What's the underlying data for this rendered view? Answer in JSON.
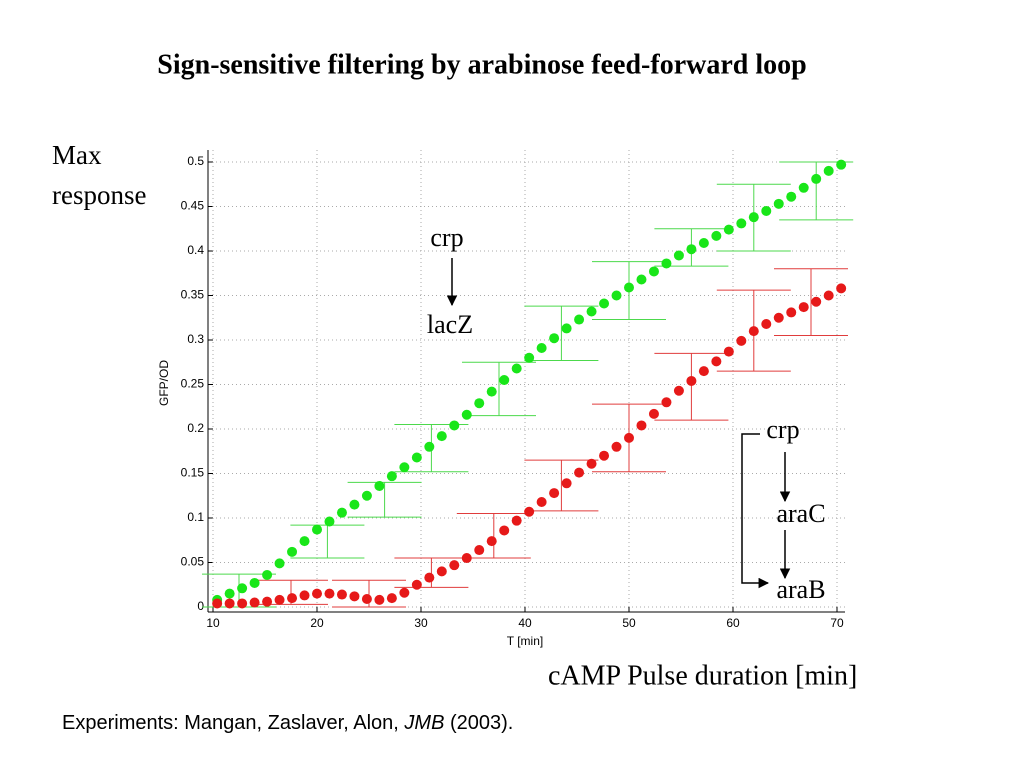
{
  "chart_data": {
    "type": "scatter",
    "title": "Sign-sensitive filtering by arabinose feed-forward loop",
    "xlabel": "T [min]",
    "ylabel": "GFP/OD",
    "x_caption": "cAMP Pulse duration [min]",
    "y_caption": [
      "Max",
      "response"
    ],
    "xlim": [
      10,
      70
    ],
    "xticks": [
      10,
      20,
      30,
      40,
      50,
      60,
      70
    ],
    "ylim": [
      0,
      0.5
    ],
    "yticks": [
      0,
      0.05,
      0.1,
      0.15,
      0.2,
      0.25,
      0.3,
      0.35,
      0.4,
      0.45,
      0.5
    ],
    "grid": true,
    "x": [
      10.4,
      11.6,
      12.8,
      14.0,
      15.2,
      16.4,
      17.6,
      18.8,
      20.0,
      21.2,
      22.4,
      23.6,
      24.8,
      26.0,
      27.2,
      28.4,
      29.6,
      30.8,
      32.0,
      33.2,
      34.4,
      35.6,
      36.8,
      38.0,
      39.2,
      40.4,
      41.6,
      42.8,
      44.0,
      45.2,
      46.4,
      47.6,
      48.8,
      50.0,
      51.2,
      52.4,
      53.6,
      54.8,
      56.0,
      57.2,
      58.4,
      59.6,
      60.8,
      62.0,
      63.2,
      64.4,
      65.6,
      66.8,
      68.0,
      69.2,
      70.4
    ],
    "series": [
      {
        "color": "#19e619",
        "bar_color": "#4cd94c",
        "values": [
          0.008,
          0.015,
          0.021,
          0.027,
          0.036,
          0.049,
          0.062,
          0.074,
          0.087,
          0.096,
          0.106,
          0.115,
          0.125,
          0.136,
          0.147,
          0.157,
          0.168,
          0.18,
          0.192,
          0.204,
          0.216,
          0.229,
          0.242,
          0.255,
          0.268,
          0.28,
          0.291,
          0.302,
          0.313,
          0.323,
          0.332,
          0.341,
          0.35,
          0.359,
          0.368,
          0.377,
          0.386,
          0.395,
          0.402,
          0.409,
          0.417,
          0.424,
          0.431,
          0.438,
          0.445,
          0.453,
          0.461,
          0.471,
          0.481,
          0.49,
          0.497
        ],
        "errorbars": {
          "x": [
            12.5,
            21,
            26.5,
            31,
            37.5,
            43.5,
            50,
            56,
            62,
            68
          ],
          "low": [
            0.0,
            0.055,
            0.101,
            0.152,
            0.215,
            0.277,
            0.323,
            0.383,
            0.4,
            0.435
          ],
          "high": [
            0.037,
            0.092,
            0.14,
            0.205,
            0.275,
            0.338,
            0.388,
            0.425,
            0.475,
            0.5
          ]
        }
      },
      {
        "color": "#e61919",
        "bar_color": "#e03c3c",
        "values": [
          0.004,
          0.004,
          0.004,
          0.005,
          0.006,
          0.008,
          0.01,
          0.013,
          0.015,
          0.015,
          0.014,
          0.012,
          0.009,
          0.008,
          0.01,
          0.016,
          0.025,
          0.033,
          0.04,
          0.047,
          0.055,
          0.064,
          0.074,
          0.086,
          0.097,
          0.107,
          0.118,
          0.128,
          0.139,
          0.151,
          0.161,
          0.17,
          0.18,
          0.19,
          0.204,
          0.217,
          0.23,
          0.243,
          0.254,
          0.265,
          0.276,
          0.287,
          0.299,
          0.31,
          0.318,
          0.325,
          0.331,
          0.337,
          0.343,
          0.35,
          0.358
        ],
        "errorbars": {
          "x": [
            17.5,
            25,
            31,
            37,
            43.5,
            50,
            56,
            62,
            67.5
          ],
          "low": [
            0.003,
            0.0,
            0.022,
            0.055,
            0.108,
            0.152,
            0.21,
            0.265,
            0.305
          ],
          "high": [
            0.03,
            0.03,
            0.055,
            0.105,
            0.165,
            0.228,
            0.285,
            0.356,
            0.38
          ]
        }
      }
    ],
    "annotations": [
      "crp",
      "lacZ",
      "crp",
      "araC",
      "araB"
    ]
  },
  "footnote": [
    "Experiments: Mangan, Zaslaver, Alon, ",
    "JMB",
    " (2003)."
  ]
}
